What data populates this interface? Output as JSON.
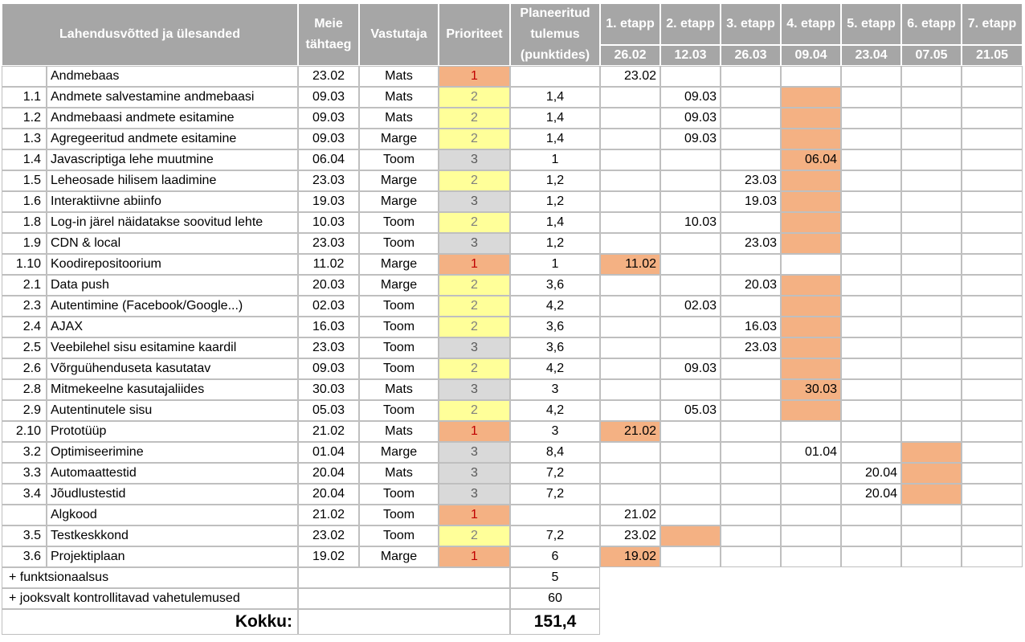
{
  "colors": {
    "header_bg": "#a6a6a6",
    "priority_1": "#f4b183",
    "priority_2": "#ffff99",
    "priority_3": "#d9d9d9",
    "highlight": "#f4b183"
  },
  "headers": {
    "task": "Lahendusvõtted ja ülesanded",
    "deadline": "Meie tähtaeg",
    "owner": "Vastutaja",
    "priority": "Prioriteet",
    "planned": "Planeeritud tulemus (punktides)"
  },
  "stages": [
    {
      "label": "1. etapp",
      "date": "26.02"
    },
    {
      "label": "2. etapp",
      "date": "12.03"
    },
    {
      "label": "3. etapp",
      "date": "26.03"
    },
    {
      "label": "4. etapp",
      "date": "09.04"
    },
    {
      "label": "5. etapp",
      "date": "23.04"
    },
    {
      "label": "6. etapp",
      "date": "07.05"
    },
    {
      "label": "7. etapp",
      "date": "21.05"
    }
  ],
  "rows": [
    {
      "id": "",
      "task": "Andmebaas",
      "deadline": "23.02",
      "owner": "Mats",
      "priority": "1",
      "points": "",
      "stage_values": [
        "23.02",
        "",
        "",
        "",
        "",
        "",
        ""
      ],
      "stage_highlight": [
        false,
        false,
        false,
        false,
        false,
        false,
        false
      ]
    },
    {
      "id": "1.1",
      "task": "Andmete salvestamine andmebaasi",
      "deadline": "09.03",
      "owner": "Mats",
      "priority": "2",
      "points": "1,4",
      "stage_values": [
        "",
        "09.03",
        "",
        "",
        "",
        "",
        ""
      ],
      "stage_highlight": [
        false,
        false,
        false,
        true,
        false,
        false,
        false
      ]
    },
    {
      "id": "1.2",
      "task": "Andmebaasi andmete esitamine",
      "deadline": "09.03",
      "owner": "Mats",
      "priority": "2",
      "points": "1,4",
      "stage_values": [
        "",
        "09.03",
        "",
        "",
        "",
        "",
        ""
      ],
      "stage_highlight": [
        false,
        false,
        false,
        true,
        false,
        false,
        false
      ]
    },
    {
      "id": "1.3",
      "task": "Agregeeritud andmete esitamine",
      "deadline": "09.03",
      "owner": "Marge",
      "priority": "2",
      "points": "1,4",
      "stage_values": [
        "",
        "09.03",
        "",
        "",
        "",
        "",
        ""
      ],
      "stage_highlight": [
        false,
        false,
        false,
        true,
        false,
        false,
        false
      ]
    },
    {
      "id": "1.4",
      "task": "Javascriptiga lehe muutmine",
      "deadline": "06.04",
      "owner": "Toom",
      "priority": "3",
      "points": "1",
      "stage_values": [
        "",
        "",
        "",
        "06.04",
        "",
        "",
        ""
      ],
      "stage_highlight": [
        false,
        false,
        false,
        true,
        false,
        false,
        false
      ]
    },
    {
      "id": "1.5",
      "task": "Leheosade hilisem laadimine",
      "deadline": "23.03",
      "owner": "Marge",
      "priority": "2",
      "points": "1,2",
      "stage_values": [
        "",
        "",
        "23.03",
        "",
        "",
        "",
        ""
      ],
      "stage_highlight": [
        false,
        false,
        false,
        true,
        false,
        false,
        false
      ]
    },
    {
      "id": "1.6",
      "task": "Interaktiivne abiinfo",
      "deadline": "19.03",
      "owner": "Marge",
      "priority": "3",
      "points": "1,2",
      "stage_values": [
        "",
        "",
        "19.03",
        "",
        "",
        "",
        ""
      ],
      "stage_highlight": [
        false,
        false,
        false,
        true,
        false,
        false,
        false
      ]
    },
    {
      "id": "1.8",
      "task": "Log-in järel näidatakse soovitud lehte",
      "deadline": "10.03",
      "owner": "Toom",
      "priority": "2",
      "points": "1,4",
      "stage_values": [
        "",
        "10.03",
        "",
        "",
        "",
        "",
        ""
      ],
      "stage_highlight": [
        false,
        false,
        false,
        true,
        false,
        false,
        false
      ]
    },
    {
      "id": "1.9",
      "task": "CDN & local",
      "deadline": "23.03",
      "owner": "Toom",
      "priority": "3",
      "points": "1,2",
      "stage_values": [
        "",
        "",
        "23.03",
        "",
        "",
        "",
        ""
      ],
      "stage_highlight": [
        false,
        false,
        false,
        true,
        false,
        false,
        false
      ]
    },
    {
      "id": "1.10",
      "task": "Koodirepositoorium",
      "deadline": "11.02",
      "owner": "Marge",
      "priority": "1",
      "points": "1",
      "stage_values": [
        "11.02",
        "",
        "",
        "",
        "",
        "",
        ""
      ],
      "stage_highlight": [
        true,
        false,
        false,
        false,
        false,
        false,
        false
      ]
    },
    {
      "id": "2.1",
      "task": "Data push",
      "deadline": "20.03",
      "owner": "Marge",
      "priority": "2",
      "points": "3,6",
      "stage_values": [
        "",
        "",
        "20.03",
        "",
        "",
        "",
        ""
      ],
      "stage_highlight": [
        false,
        false,
        false,
        true,
        false,
        false,
        false
      ]
    },
    {
      "id": "2.3",
      "task": "Autentimine (Facebook/Google...)",
      "deadline": "02.03",
      "owner": "Toom",
      "priority": "2",
      "points": "4,2",
      "stage_values": [
        "",
        "02.03",
        "",
        "",
        "",
        "",
        ""
      ],
      "stage_highlight": [
        false,
        false,
        false,
        true,
        false,
        false,
        false
      ]
    },
    {
      "id": "2.4",
      "task": "AJAX",
      "deadline": "16.03",
      "owner": "Toom",
      "priority": "2",
      "points": "3,6",
      "stage_values": [
        "",
        "",
        "16.03",
        "",
        "",
        "",
        ""
      ],
      "stage_highlight": [
        false,
        false,
        false,
        true,
        false,
        false,
        false
      ]
    },
    {
      "id": "2.5",
      "task": "Veebilehel sisu esitamine kaardil",
      "deadline": "23.03",
      "owner": "Toom",
      "priority": "3",
      "points": "3,6",
      "stage_values": [
        "",
        "",
        "23.03",
        "",
        "",
        "",
        ""
      ],
      "stage_highlight": [
        false,
        false,
        false,
        true,
        false,
        false,
        false
      ]
    },
    {
      "id": "2.6",
      "task": "Võrguühenduseta kasutatav",
      "deadline": "09.03",
      "owner": "Toom",
      "priority": "2",
      "points": "4,2",
      "stage_values": [
        "",
        "09.03",
        "",
        "",
        "",
        "",
        ""
      ],
      "stage_highlight": [
        false,
        false,
        false,
        true,
        false,
        false,
        false
      ]
    },
    {
      "id": "2.8",
      "task": "Mitmekeelne kasutajaliides",
      "deadline": "30.03",
      "owner": "Mats",
      "priority": "3",
      "points": "3",
      "stage_values": [
        "",
        "",
        "",
        "30.03",
        "",
        "",
        ""
      ],
      "stage_highlight": [
        false,
        false,
        false,
        true,
        false,
        false,
        false
      ]
    },
    {
      "id": "2.9",
      "task": "Autentinutele sisu",
      "deadline": "05.03",
      "owner": "Toom",
      "priority": "2",
      "points": "4,2",
      "stage_values": [
        "",
        "05.03",
        "",
        "",
        "",
        "",
        ""
      ],
      "stage_highlight": [
        false,
        false,
        false,
        true,
        false,
        false,
        false
      ]
    },
    {
      "id": "2.10",
      "task": "Prototüüp",
      "deadline": "21.02",
      "owner": "Mats",
      "priority": "1",
      "points": "3",
      "stage_values": [
        "21.02",
        "",
        "",
        "",
        "",
        "",
        ""
      ],
      "stage_highlight": [
        true,
        false,
        false,
        false,
        false,
        false,
        false
      ]
    },
    {
      "id": "3.2",
      "task": "Optimiseerimine",
      "deadline": "01.04",
      "owner": "Marge",
      "priority": "3",
      "points": "8,4",
      "stage_values": [
        "",
        "",
        "",
        "01.04",
        "",
        "",
        ""
      ],
      "stage_highlight": [
        false,
        false,
        false,
        false,
        false,
        true,
        false
      ]
    },
    {
      "id": "3.3",
      "task": "Automaattestid",
      "deadline": "20.04",
      "owner": "Mats",
      "priority": "3",
      "points": "7,2",
      "stage_values": [
        "",
        "",
        "",
        "",
        "20.04",
        "",
        ""
      ],
      "stage_highlight": [
        false,
        false,
        false,
        false,
        false,
        true,
        false
      ]
    },
    {
      "id": "3.4",
      "task": "Jõudlustestid",
      "deadline": "20.04",
      "owner": "Toom",
      "priority": "3",
      "points": "7,2",
      "stage_values": [
        "",
        "",
        "",
        "",
        "20.04",
        "",
        ""
      ],
      "stage_highlight": [
        false,
        false,
        false,
        false,
        false,
        true,
        false
      ]
    },
    {
      "id": "",
      "task": "Algkood",
      "deadline": "21.02",
      "owner": "Toom",
      "priority": "1",
      "points": "",
      "stage_values": [
        "21.02",
        "",
        "",
        "",
        "",
        "",
        ""
      ],
      "stage_highlight": [
        false,
        false,
        false,
        false,
        false,
        false,
        false
      ]
    },
    {
      "id": "3.5",
      "task": "Testkeskkond",
      "deadline": "23.02",
      "owner": "Toom",
      "priority": "2",
      "points": "7,2",
      "stage_values": [
        "23.02",
        "",
        "",
        "",
        "",
        "",
        ""
      ],
      "stage_highlight": [
        false,
        true,
        false,
        false,
        false,
        false,
        false
      ]
    },
    {
      "id": "3.6",
      "task": "Projektiplaan",
      "deadline": "19.02",
      "owner": "Marge",
      "priority": "1",
      "points": "6",
      "stage_values": [
        "19.02",
        "",
        "",
        "",
        "",
        "",
        ""
      ],
      "stage_highlight": [
        true,
        false,
        false,
        false,
        false,
        false,
        false
      ]
    }
  ],
  "footer": [
    {
      "label": "+ funktsionaalsus",
      "value": "5"
    },
    {
      "label": "+ jooksvalt kontrollitavad vahetulemused",
      "value": "60"
    }
  ],
  "total": {
    "label": "Kokku:",
    "value": "151,4"
  }
}
